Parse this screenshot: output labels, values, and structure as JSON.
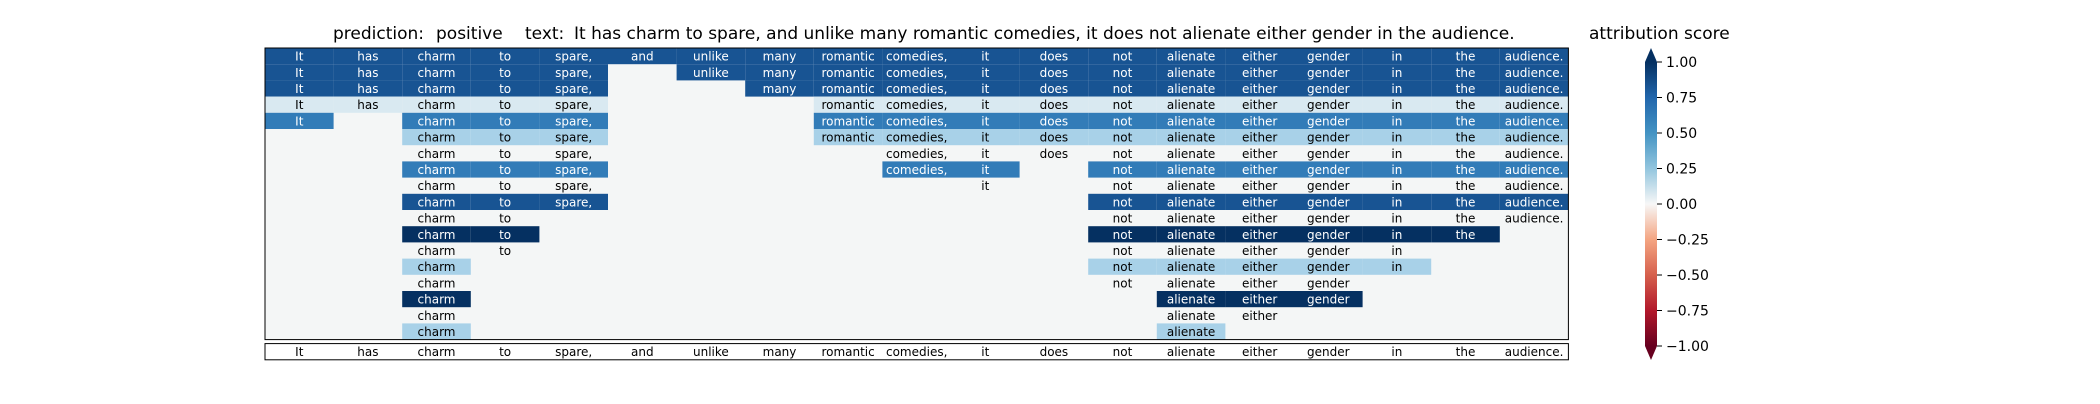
{
  "header": {
    "prediction_label": "prediction:",
    "prediction_value": "positive",
    "text_label": "text:",
    "text_value": "It has charm to spare, and unlike many romantic comedies, it does not alienate either gender in the audience."
  },
  "colorbar": {
    "title": "attribution score",
    "ticks": [
      "1.00",
      "0.75",
      "0.50",
      "0.25",
      "0.00",
      "−0.25",
      "−0.50",
      "−0.75",
      "−1.00"
    ],
    "colors": {
      "neg": "#67001f",
      "mid": "#f7f7f7",
      "pos": "#053061"
    }
  },
  "chart_data": {
    "type": "heatmap",
    "title": "",
    "colormap": "RdBu (diverging)",
    "value_range": [
      -1,
      1
    ],
    "tokens": [
      "It",
      "has",
      "charm",
      "to",
      "spare,",
      "and",
      "unlike",
      "many",
      "romantic",
      "comedies,",
      "it",
      "does",
      "not",
      "alienate",
      "either",
      "gender",
      "in",
      "the",
      "audience."
    ],
    "rows": [
      {
        "present": [
          1,
          1,
          1,
          1,
          1,
          1,
          1,
          1,
          1,
          1,
          1,
          1,
          1,
          1,
          1,
          1,
          1,
          1,
          1
        ],
        "scores": [
          0.9,
          0.9,
          0.9,
          0.9,
          0.9,
          0.9,
          0.9,
          0.9,
          0.9,
          0.9,
          0.9,
          0.9,
          0.9,
          0.9,
          0.9,
          0.9,
          0.9,
          0.9,
          0.9
        ]
      },
      {
        "present": [
          1,
          1,
          1,
          1,
          1,
          0,
          1,
          1,
          1,
          1,
          1,
          1,
          1,
          1,
          1,
          1,
          1,
          1,
          1
        ],
        "scores": [
          0.9,
          0.9,
          0.9,
          0.9,
          0.9,
          0,
          0.9,
          0.9,
          0.9,
          0.9,
          0.9,
          0.9,
          0.9,
          0.9,
          0.9,
          0.9,
          0.9,
          0.9,
          0.9
        ]
      },
      {
        "present": [
          1,
          1,
          1,
          1,
          1,
          0,
          0,
          1,
          1,
          1,
          1,
          1,
          1,
          1,
          1,
          1,
          1,
          1,
          1
        ],
        "scores": [
          0.9,
          0.9,
          0.9,
          0.9,
          0.9,
          0,
          0,
          0.9,
          0.9,
          0.9,
          0.9,
          0.9,
          0.9,
          0.9,
          0.9,
          0.9,
          0.9,
          0.9,
          0.9
        ]
      },
      {
        "present": [
          1,
          1,
          1,
          1,
          1,
          0,
          0,
          0,
          1,
          1,
          1,
          1,
          1,
          1,
          1,
          1,
          1,
          1,
          1
        ],
        "scores": [
          0.2,
          0.2,
          0.2,
          0.2,
          0.2,
          0,
          0,
          0,
          0.2,
          0.2,
          0.2,
          0.2,
          0.2,
          0.2,
          0.2,
          0.2,
          0.2,
          0.2,
          0.2
        ]
      },
      {
        "present": [
          1,
          0,
          1,
          1,
          1,
          0,
          0,
          0,
          1,
          1,
          1,
          1,
          1,
          1,
          1,
          1,
          1,
          1,
          1
        ],
        "scores": [
          0.8,
          0,
          0.8,
          0.8,
          0.8,
          0,
          0,
          0,
          0.8,
          0.8,
          0.8,
          0.8,
          0.8,
          0.8,
          0.8,
          0.8,
          0.8,
          0.8,
          0.8
        ]
      },
      {
        "present": [
          0,
          0,
          1,
          1,
          1,
          0,
          0,
          0,
          1,
          1,
          1,
          1,
          1,
          1,
          1,
          1,
          1,
          1,
          1
        ],
        "scores": [
          0,
          0,
          0.4,
          0.4,
          0.4,
          0,
          0,
          0,
          0.4,
          0.4,
          0.4,
          0.4,
          0.4,
          0.4,
          0.4,
          0.4,
          0.4,
          0.4,
          0.4
        ]
      },
      {
        "present": [
          0,
          0,
          1,
          1,
          1,
          0,
          0,
          0,
          0,
          1,
          1,
          1,
          1,
          1,
          1,
          1,
          1,
          1,
          1
        ],
        "scores": [
          0,
          0,
          0,
          0,
          0,
          0,
          0,
          0,
          0,
          0,
          0,
          0,
          0,
          0,
          0,
          0,
          0,
          0,
          0
        ]
      },
      {
        "present": [
          0,
          0,
          1,
          1,
          1,
          0,
          0,
          0,
          0,
          1,
          1,
          0,
          1,
          1,
          1,
          1,
          1,
          1,
          1
        ],
        "scores": [
          0,
          0,
          0.8,
          0.8,
          0.8,
          0,
          0,
          0,
          0,
          0.8,
          0.8,
          0,
          0.8,
          0.8,
          0.8,
          0.8,
          0.8,
          0.8,
          0.8
        ]
      },
      {
        "present": [
          0,
          0,
          1,
          1,
          1,
          0,
          0,
          0,
          0,
          0,
          1,
          0,
          1,
          1,
          1,
          1,
          1,
          1,
          1
        ],
        "scores": [
          0,
          0,
          0,
          0,
          0,
          0,
          0,
          0,
          0,
          0,
          0,
          0,
          0,
          0,
          0,
          0,
          0,
          0,
          0
        ]
      },
      {
        "present": [
          0,
          0,
          1,
          1,
          1,
          0,
          0,
          0,
          0,
          0,
          0,
          0,
          1,
          1,
          1,
          1,
          1,
          1,
          1
        ],
        "scores": [
          0,
          0,
          0.9,
          0.9,
          0.9,
          0,
          0,
          0,
          0,
          0,
          0,
          0,
          0.9,
          0.9,
          0.9,
          0.9,
          0.9,
          0.9,
          0.9
        ]
      },
      {
        "present": [
          0,
          0,
          1,
          1,
          0,
          0,
          0,
          0,
          0,
          0,
          0,
          0,
          1,
          1,
          1,
          1,
          1,
          1,
          1
        ],
        "scores": [
          0,
          0,
          0,
          0,
          0,
          0,
          0,
          0,
          0,
          0,
          0,
          0,
          0,
          0,
          0,
          0,
          0,
          0,
          0
        ]
      },
      {
        "present": [
          0,
          0,
          1,
          1,
          0,
          0,
          0,
          0,
          0,
          0,
          0,
          0,
          1,
          1,
          1,
          1,
          1,
          1,
          0
        ],
        "scores": [
          0,
          0,
          1,
          1,
          0,
          0,
          0,
          0,
          0,
          0,
          0,
          0,
          1,
          1,
          1,
          1,
          1,
          1,
          0
        ]
      },
      {
        "present": [
          0,
          0,
          1,
          1,
          0,
          0,
          0,
          0,
          0,
          0,
          0,
          0,
          1,
          1,
          1,
          1,
          1,
          0,
          0
        ],
        "scores": [
          0,
          0,
          0,
          0,
          0,
          0,
          0,
          0,
          0,
          0,
          0,
          0,
          0,
          0,
          0,
          0,
          0,
          0,
          0
        ]
      },
      {
        "present": [
          0,
          0,
          1,
          0,
          0,
          0,
          0,
          0,
          0,
          0,
          0,
          0,
          1,
          1,
          1,
          1,
          1,
          0,
          0
        ],
        "scores": [
          0,
          0,
          0.4,
          0,
          0,
          0,
          0,
          0,
          0,
          0,
          0,
          0,
          0.4,
          0.4,
          0.4,
          0.4,
          0.4,
          0,
          0
        ]
      },
      {
        "present": [
          0,
          0,
          1,
          0,
          0,
          0,
          0,
          0,
          0,
          0,
          0,
          0,
          1,
          1,
          1,
          1,
          0,
          0,
          0
        ],
        "scores": [
          0,
          0,
          0,
          0,
          0,
          0,
          0,
          0,
          0,
          0,
          0,
          0,
          0,
          0,
          0,
          0,
          0,
          0,
          0
        ]
      },
      {
        "present": [
          0,
          0,
          1,
          0,
          0,
          0,
          0,
          0,
          0,
          0,
          0,
          0,
          0,
          1,
          1,
          1,
          0,
          0,
          0
        ],
        "scores": [
          0,
          0,
          1,
          0,
          0,
          0,
          0,
          0,
          0,
          0,
          0,
          0,
          0,
          1,
          1,
          1,
          0,
          0,
          0
        ]
      },
      {
        "present": [
          0,
          0,
          1,
          0,
          0,
          0,
          0,
          0,
          0,
          0,
          0,
          0,
          0,
          1,
          1,
          0,
          0,
          0,
          0
        ],
        "scores": [
          0,
          0,
          0,
          0,
          0,
          0,
          0,
          0,
          0,
          0,
          0,
          0,
          0,
          0,
          0,
          0,
          0,
          0,
          0
        ]
      },
      {
        "present": [
          0,
          0,
          1,
          0,
          0,
          0,
          0,
          0,
          0,
          0,
          0,
          0,
          0,
          1,
          0,
          0,
          0,
          0,
          0
        ],
        "scores": [
          0,
          0,
          0.4,
          0,
          0,
          0,
          0,
          0,
          0,
          0,
          0,
          0,
          0,
          0.4,
          0,
          0,
          0,
          0,
          0
        ]
      }
    ]
  }
}
